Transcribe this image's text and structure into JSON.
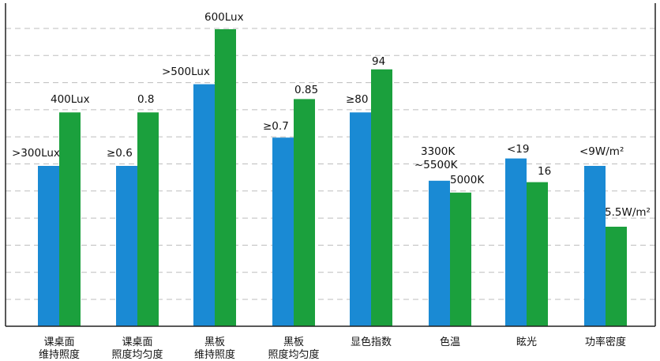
{
  "chart_data": {
    "type": "bar",
    "grid": true,
    "grid_style": "dashed",
    "colors": {
      "standard": "#1a8ad4",
      "measured": "#1ba03d",
      "axis": "#222222",
      "grid": "#bdbdbd"
    },
    "categories": [
      {
        "lines": [
          "课桌面",
          "维持照度"
        ]
      },
      {
        "lines": [
          "课桌面",
          "照度均匀度"
        ]
      },
      {
        "lines": [
          "黑板",
          "维持照度"
        ]
      },
      {
        "lines": [
          "黑板",
          "照度均匀度"
        ]
      },
      {
        "lines": [
          "显色指数"
        ]
      },
      {
        "lines": [
          "色温"
        ]
      },
      {
        "lines": [
          "眩光"
        ]
      },
      {
        "lines": [
          "功率密度"
        ]
      }
    ],
    "series": [
      {
        "relative_heights": [
          0.54,
          0.54,
          0.815,
          0.635,
          0.72,
          0.49,
          0.565,
          0.54
        ],
        "labels": [
          ">300Lux",
          "≥0.6",
          ">500Lux",
          "≥0.7",
          "≥80",
          "3300K|~5500K",
          "<19",
          "<9W/m²"
        ]
      },
      {
        "relative_heights": [
          0.72,
          0.72,
          1.0,
          0.765,
          0.865,
          0.45,
          0.485,
          0.335
        ],
        "labels": [
          "400Lux",
          "0.8",
          "600Lux",
          "0.85",
          "94",
          "5000K",
          "16",
          "5.5W/m²"
        ]
      }
    ]
  }
}
